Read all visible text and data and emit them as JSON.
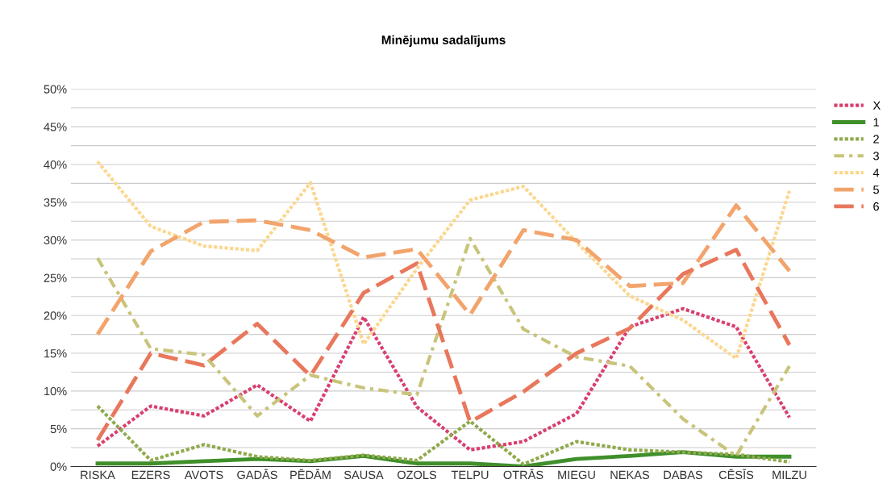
{
  "chart_data": {
    "type": "line",
    "title": "Minējumu sadalījums",
    "categories": [
      "RISKA",
      "EZERS",
      "AVOTS",
      "GADĀS",
      "PĒDĀM",
      "SAUSA",
      "OZOLS",
      "TELPU",
      "OTRĀS",
      "MIEGU",
      "NEKAS",
      "DABAS",
      "CĒSĪS",
      "MILZU"
    ],
    "series": [
      {
        "name": "X",
        "color": "#d93f6e",
        "line_style": "dotted",
        "values": [
          2.7,
          8.0,
          6.7,
          10.8,
          6.0,
          19.8,
          7.9,
          2.2,
          3.3,
          7.0,
          18.5,
          20.9,
          18.5,
          6.5
        ]
      },
      {
        "name": "1",
        "color": "#3f8f2a",
        "line_style": "solid",
        "values": [
          0.4,
          0.4,
          0.7,
          1.0,
          0.7,
          1.4,
          0.4,
          0.4,
          0.0,
          1.0,
          1.4,
          1.9,
          1.3,
          1.3
        ]
      },
      {
        "name": "2",
        "color": "#8faa4c",
        "line_style": "dotted",
        "values": [
          8.0,
          0.8,
          2.9,
          1.3,
          0.8,
          1.5,
          0.8,
          6.0,
          0.3,
          3.3,
          2.2,
          1.9,
          1.6,
          0.6
        ]
      },
      {
        "name": "3",
        "color": "#c8c47a",
        "line_style": "dashdot",
        "values": [
          27.6,
          15.6,
          14.8,
          6.7,
          12.1,
          10.4,
          9.5,
          30.2,
          18.2,
          14.5,
          13.3,
          6.3,
          1.4,
          13.3
        ]
      },
      {
        "name": "4",
        "color": "#fbd78e",
        "line_style": "dotted",
        "values": [
          40.4,
          31.8,
          29.2,
          28.6,
          37.6,
          16.2,
          26.2,
          35.3,
          37.1,
          29.7,
          22.6,
          19.4,
          14.3,
          36.5
        ]
      },
      {
        "name": "5",
        "color": "#f2a46c",
        "line_style": "dashed",
        "values": [
          17.5,
          28.5,
          32.4,
          32.6,
          31.3,
          27.7,
          28.8,
          20.1,
          31.3,
          30.0,
          23.9,
          24.3,
          34.6,
          25.9
        ]
      },
      {
        "name": "6",
        "color": "#e8775c",
        "line_style": "dashed",
        "values": [
          3.5,
          15.0,
          13.4,
          18.9,
          12.0,
          23.0,
          26.9,
          5.9,
          9.9,
          15.0,
          18.3,
          25.5,
          28.7,
          16.1
        ]
      }
    ],
    "ylim": [
      0,
      50
    ],
    "yticks": [
      {
        "value": 0,
        "label": "0%"
      },
      {
        "value": 2.5,
        "label": null
      },
      {
        "value": 5,
        "label": "5%"
      },
      {
        "value": 7.5,
        "label": null
      },
      {
        "value": 10,
        "label": "10%"
      },
      {
        "value": 12.5,
        "label": null
      },
      {
        "value": 15,
        "label": "15%"
      },
      {
        "value": 17.5,
        "label": null
      },
      {
        "value": 20,
        "label": "20%"
      },
      {
        "value": 22.5,
        "label": null
      },
      {
        "value": 25,
        "label": "25%"
      },
      {
        "value": 27.5,
        "label": null
      },
      {
        "value": 30,
        "label": "30%"
      },
      {
        "value": 32.5,
        "label": null
      },
      {
        "value": 35,
        "label": "35%"
      },
      {
        "value": 37.5,
        "label": null
      },
      {
        "value": 40,
        "label": "40%"
      },
      {
        "value": 42.5,
        "label": null
      },
      {
        "value": 45,
        "label": "45%"
      },
      {
        "value": 47.5,
        "label": null
      },
      {
        "value": 50,
        "label": "50%"
      }
    ],
    "grid": "y",
    "legend": "right"
  }
}
